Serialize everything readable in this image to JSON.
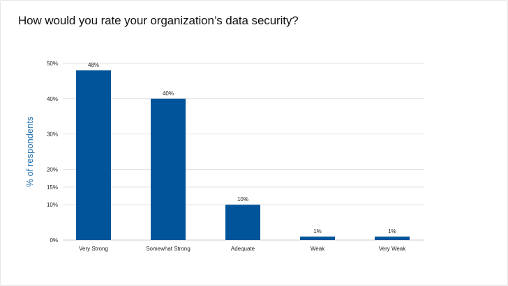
{
  "chart_data": {
    "type": "bar",
    "title": "How would you rate your organization’s data security?",
    "ylabel": "% of respondents",
    "xlabel": "",
    "categories": [
      "Very Strong",
      "Somewhat Strong",
      "Adequate",
      "Weak",
      "Very Weak"
    ],
    "values": [
      48,
      40,
      10,
      1,
      1
    ],
    "data_labels": [
      "48%",
      "40%",
      "10%",
      "1%",
      "1%"
    ],
    "y_ticks": [
      0,
      10,
      15,
      20,
      30,
      40,
      50
    ],
    "y_tick_labels": [
      "0%",
      "10%",
      "15%",
      "20%",
      "30%",
      "40%",
      "50%"
    ],
    "ylim": [
      0,
      50
    ],
    "grid": true,
    "legend": "none",
    "bar_color": "#00559a",
    "grid_color": "#d9d9d9"
  }
}
